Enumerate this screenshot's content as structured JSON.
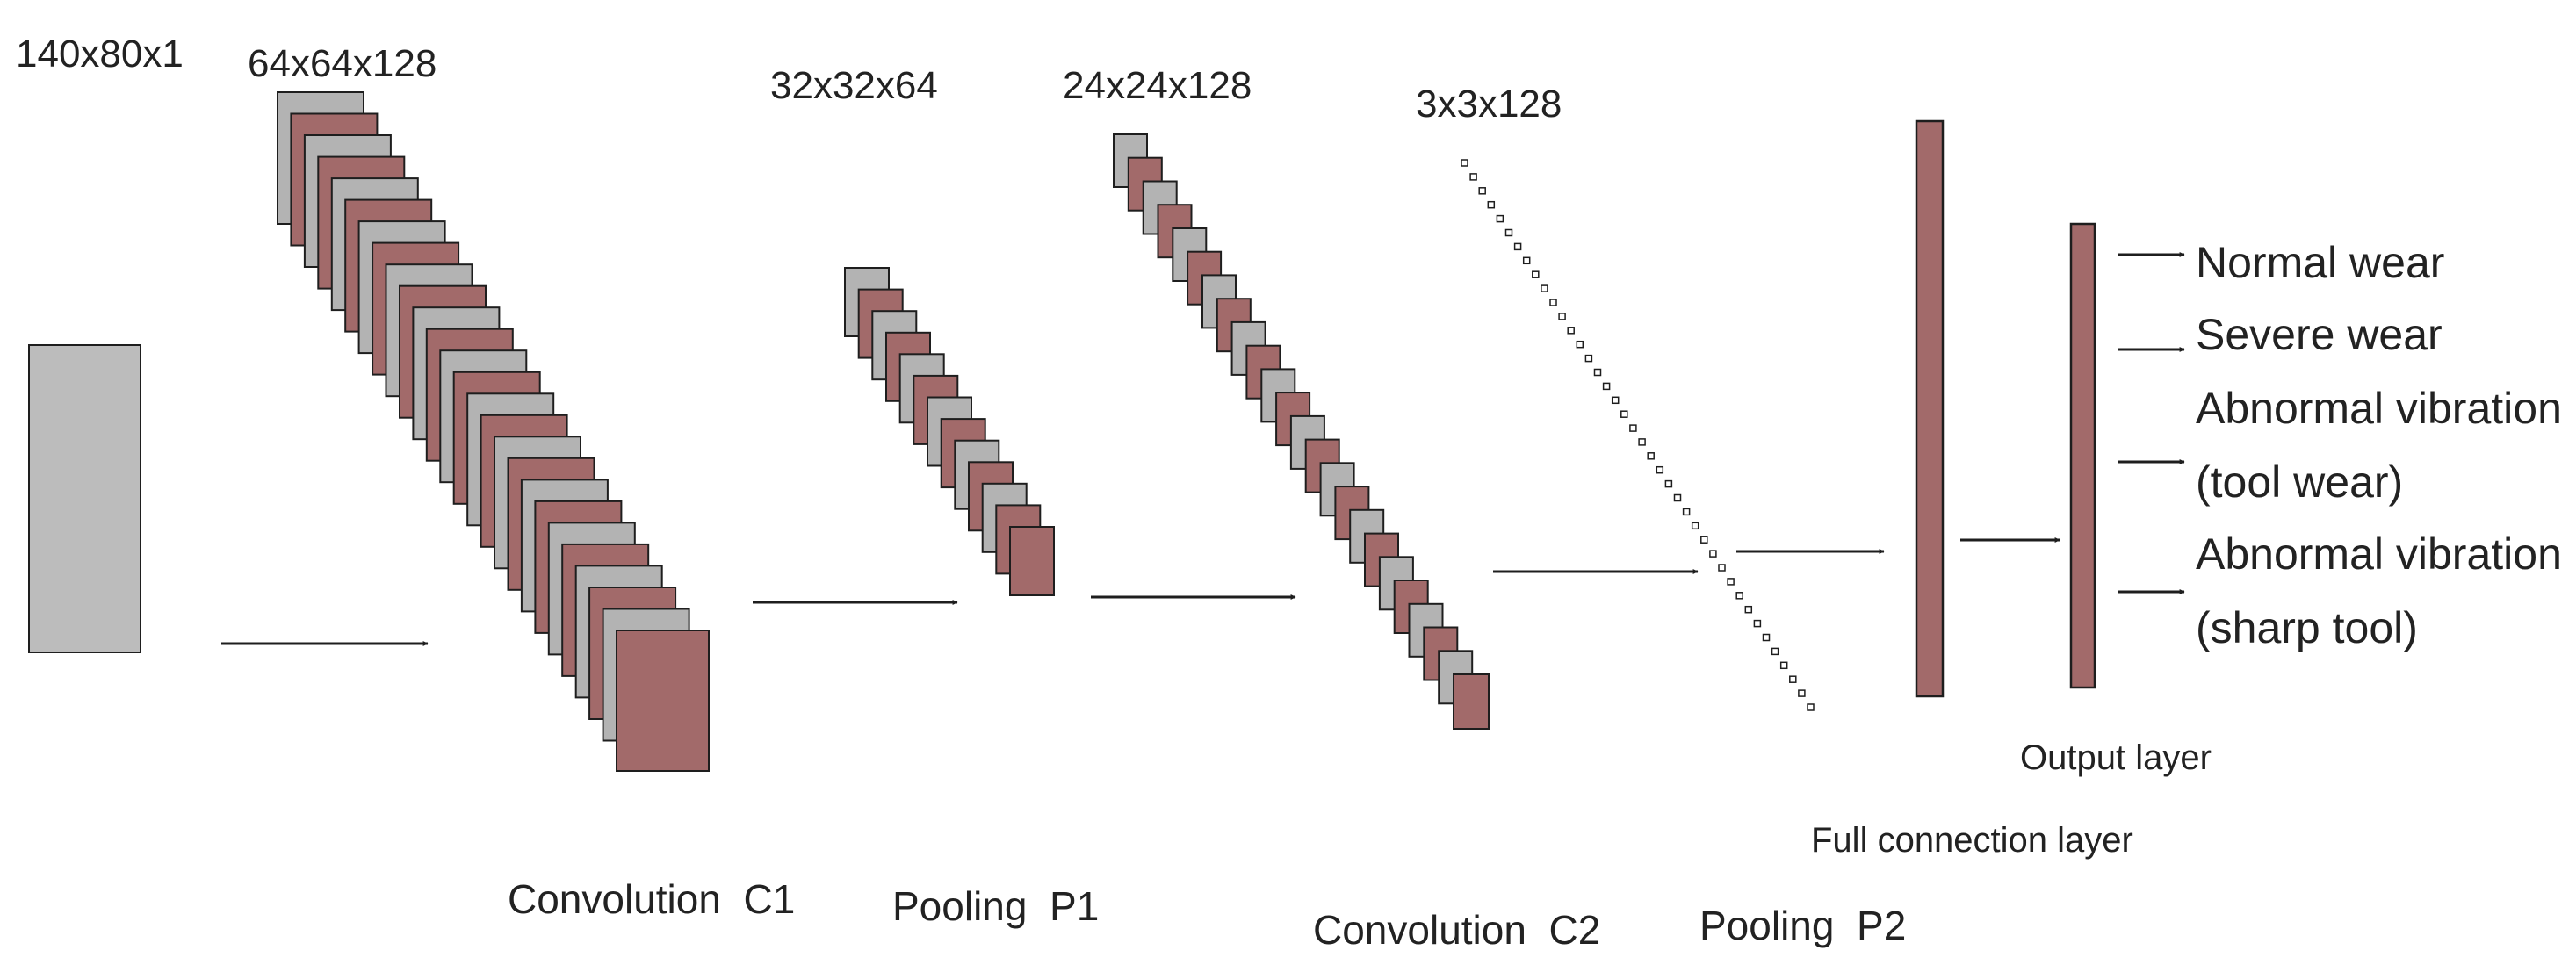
{
  "input": {
    "dim_label": "140x80x1"
  },
  "conv1": {
    "dim_label": "64x64x128",
    "stage_label": "Convolution  C1"
  },
  "pool1": {
    "dim_label": "32x32x64",
    "stage_label": "Pooling  P1"
  },
  "conv2": {
    "dim_label": "24x24x128",
    "stage_label": "Convolution  C2"
  },
  "pool2": {
    "dim_label": "3x3x128",
    "stage_label": "Pooling  P2"
  },
  "full_connection": {
    "label": "Full connection layer"
  },
  "output_layer": {
    "label": "Output layer"
  },
  "outputs": [
    {
      "lines": [
        "Normal wear"
      ]
    },
    {
      "lines": [
        "Severe wear"
      ]
    },
    {
      "lines": [
        "Abnormal vibration",
        "(tool wear)"
      ]
    },
    {
      "lines": [
        "Abnormal vibration",
        "(sharp tool)"
      ]
    }
  ],
  "colors": {
    "feature_map_red": "#a26a6a",
    "feature_map_grey": "#b3b3b3",
    "input_grey": "#bcbcbc",
    "stroke": "#1e1e1e"
  }
}
